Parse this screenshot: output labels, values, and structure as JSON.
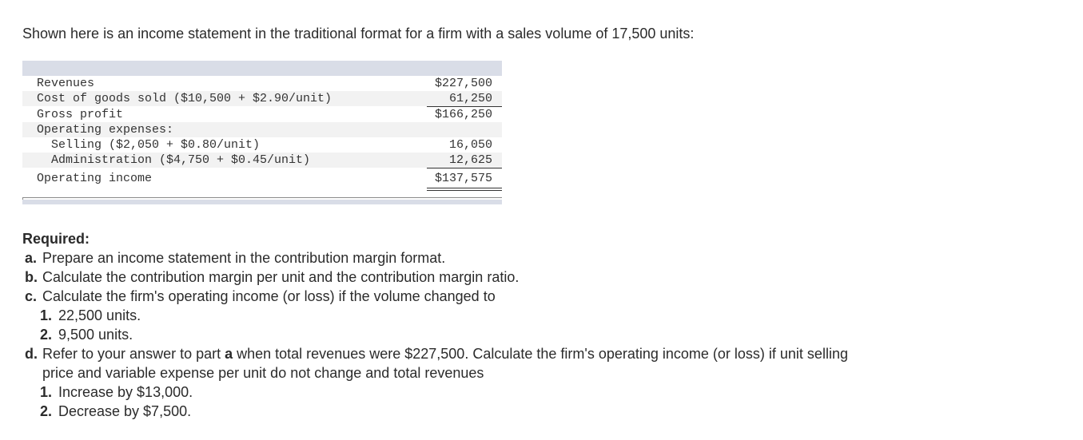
{
  "intro": "Shown here is an income statement in the traditional format for a firm with a sales volume of 17,500 units:",
  "statement": {
    "rows": [
      {
        "label": "Revenues",
        "amount": "$227,500"
      },
      {
        "label": "Cost of goods sold ($10,500 + $2.90/unit)",
        "amount": "61,250"
      },
      {
        "label": "Gross profit",
        "amount": "$166,250"
      },
      {
        "label": "Operating expenses:",
        "amount": ""
      },
      {
        "label": "Selling ($2,050 + $0.80/unit)",
        "amount": "16,050"
      },
      {
        "label": "Administration ($4,750 + $0.45/unit)",
        "amount": "12,625"
      },
      {
        "label": "Operating income",
        "amount": "$137,575"
      }
    ]
  },
  "required": {
    "heading": "Required:",
    "a": {
      "letter": "a.",
      "text": "Prepare an income statement in the contribution margin format."
    },
    "b": {
      "letter": "b.",
      "text": "Calculate the contribution margin per unit and the contribution margin ratio."
    },
    "c": {
      "letter": "c.",
      "text": "Calculate the firm's operating income (or loss) if the volume changed to",
      "items": [
        {
          "num": "1.",
          "text": "22,500 units."
        },
        {
          "num": "2.",
          "text": "9,500 units."
        }
      ]
    },
    "d": {
      "letter": "d.",
      "text_pre": "Refer to your answer to part ",
      "text_bold": "a",
      "text_post": " when total revenues were $227,500. Calculate the firm's operating income (or loss) if unit selling",
      "text_line2": "price and variable expense per unit do not change and total revenues",
      "items": [
        {
          "num": "1.",
          "text": "Increase by $13,000."
        },
        {
          "num": "2.",
          "text": "Decrease by $7,500."
        }
      ]
    }
  }
}
